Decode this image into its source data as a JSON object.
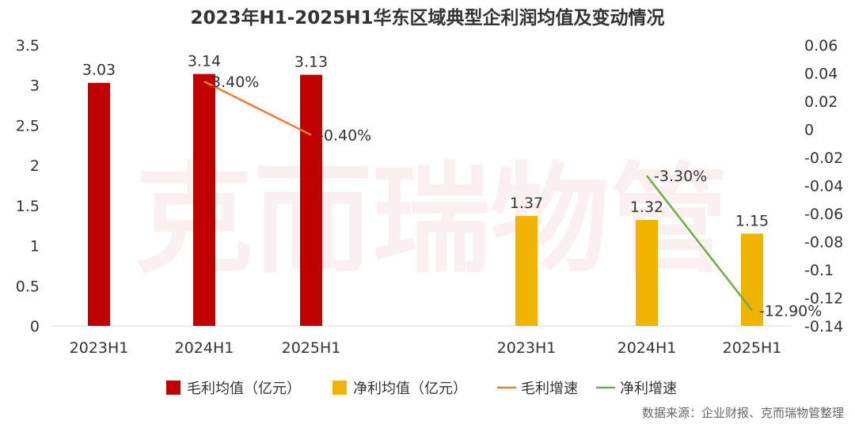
{
  "chart_data": {
    "type": "bar",
    "title": "2023年H1-2025H1华东区域典型企利润均值及变动情况",
    "categories": [
      "2023H1",
      "2024H1",
      "2025H1",
      "2023H1",
      "2024H1",
      "2025H1"
    ],
    "y_left": {
      "min": 0,
      "max": 3.5,
      "ticks": [
        "0",
        "0.5",
        "1",
        "1.5",
        "2",
        "2.5",
        "3",
        "3.5"
      ]
    },
    "y_right": {
      "min": -0.14,
      "max": 0.06,
      "ticks": [
        "0.06",
        "0.04",
        "0.02",
        "0",
        "-0.02",
        "-0.04",
        "-0.06",
        "-0.08",
        "-0.1",
        "-0.12",
        "-0.14"
      ]
    },
    "series": [
      {
        "name": "毛利均值（亿元）",
        "kind": "bar",
        "axis": "left",
        "color": "#c00000",
        "points": [
          {
            "category_index": 0,
            "value": 3.03,
            "label": "3.03"
          },
          {
            "category_index": 1,
            "value": 3.14,
            "label": "3.14"
          },
          {
            "category_index": 2,
            "value": 3.13,
            "label": "3.13"
          }
        ]
      },
      {
        "name": "净利均值（亿元）",
        "kind": "bar",
        "axis": "left",
        "color": "#f0b400",
        "points": [
          {
            "category_index": 3,
            "value": 1.37,
            "label": "1.37"
          },
          {
            "category_index": 4,
            "value": 1.32,
            "label": "1.32"
          },
          {
            "category_index": 5,
            "value": 1.15,
            "label": "1.15"
          }
        ]
      },
      {
        "name": "毛利增速",
        "kind": "line",
        "axis": "right",
        "color": "#ed7d31",
        "points": [
          {
            "category_index": 1,
            "value": 0.034,
            "label": "3.40%"
          },
          {
            "category_index": 2,
            "value": -0.004,
            "label": "-0.40%"
          }
        ]
      },
      {
        "name": "净利增速",
        "kind": "line",
        "axis": "right",
        "color": "#70ad47",
        "points": [
          {
            "category_index": 4,
            "value": -0.033,
            "label": "-3.30%"
          },
          {
            "category_index": 5,
            "value": -0.129,
            "label": "-12.90%"
          }
        ]
      }
    ],
    "legend_position": "bottom",
    "grid": false
  },
  "watermark": "克而瑞物管",
  "source_note": "数据来源：企业财报、克而瑞物管整理"
}
